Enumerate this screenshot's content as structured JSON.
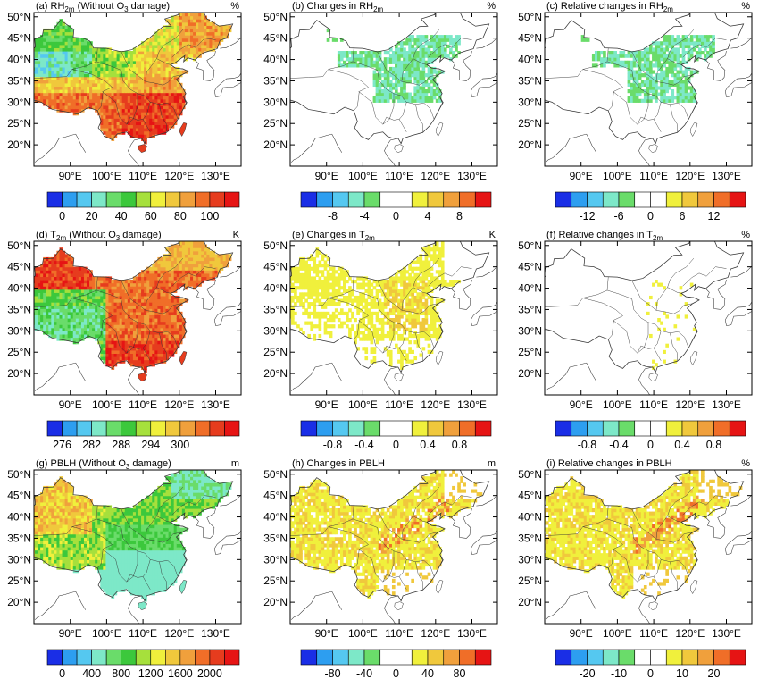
{
  "figure": {
    "lat_ticks": [
      "50°N",
      "45°N",
      "40°N",
      "35°N",
      "30°N",
      "25°N",
      "20°N"
    ],
    "lon_ticks": [
      "90°E",
      "100°E",
      "110°E",
      "120°E",
      "130°E"
    ]
  },
  "palette": {
    "rh": [
      "#1a2ee6",
      "#2d9ef0",
      "#55c8f0",
      "#7de8c8",
      "#6adc6a",
      "#3cc83c",
      "#a6e03c",
      "#f0f03c",
      "#f0c83c",
      "#f0a03c",
      "#f06e28",
      "#e63c1e",
      "#e61414"
    ],
    "div": [
      "#1a2ee6",
      "#2d9ef0",
      "#55c8f0",
      "#7de8c8",
      "#6adc6a",
      "#ffffff",
      "#ffffff",
      "#f0f03c",
      "#f0c83c",
      "#f0a03c",
      "#f06e28",
      "#e61414"
    ]
  },
  "chart_data": [
    {
      "id": "a",
      "type": "heatmap",
      "title_main": "(a) RH",
      "title_sub": "2m",
      "title_rest": " (Without O",
      "title_sub2": "3",
      "title_end": " damage)",
      "unit": "%",
      "colorbar": {
        "ticks": [
          "0",
          "20",
          "40",
          "60",
          "80",
          "100"
        ]
      },
      "field": "rh_base"
    },
    {
      "id": "b",
      "type": "heatmap",
      "title_main": "(b) Changes in RH",
      "title_sub": "2m",
      "title_rest": "",
      "title_sub2": "",
      "title_end": "",
      "unit": "%",
      "colorbar": {
        "ticks": [
          "-8",
          "-4",
          "0",
          "4",
          "8"
        ]
      },
      "field": "rh_change"
    },
    {
      "id": "c",
      "type": "heatmap",
      "title_main": "(c) Relative changes in RH",
      "title_sub": "2m",
      "title_rest": "",
      "title_sub2": "",
      "title_end": "",
      "unit": "%",
      "colorbar": {
        "ticks": [
          "-12",
          "-6",
          "0",
          "6",
          "12"
        ]
      },
      "field": "rh_change"
    },
    {
      "id": "d",
      "type": "heatmap",
      "title_main": "(d) T",
      "title_sub": "2m",
      "title_rest": " (Without O",
      "title_sub2": "3",
      "title_end": " damage)",
      "unit": "K",
      "colorbar": {
        "ticks": [
          "276",
          "282",
          "288",
          "294",
          "300"
        ]
      },
      "field": "t_base"
    },
    {
      "id": "e",
      "type": "heatmap",
      "title_main": "(e) Changes in T",
      "title_sub": "2m",
      "title_rest": "",
      "title_sub2": "",
      "title_end": "",
      "unit": "K",
      "colorbar": {
        "ticks": [
          "-0.8",
          "-0.4",
          "0",
          "0.4",
          "0.8"
        ]
      },
      "field": "t_change"
    },
    {
      "id": "f",
      "type": "heatmap",
      "title_main": "(f) Relative changes in T",
      "title_sub": "2m",
      "title_rest": "",
      "title_sub2": "",
      "title_end": "",
      "unit": "%",
      "colorbar": {
        "ticks": [
          "-0.8",
          "-0.4",
          "0",
          "0.4",
          "0.8"
        ]
      },
      "field": "t_rel"
    },
    {
      "id": "g",
      "type": "heatmap",
      "title_main": "(g) PBLH",
      "title_sub": "",
      "title_rest": " (Without O",
      "title_sub2": "3",
      "title_end": " damage)",
      "unit": "m",
      "colorbar": {
        "ticks": [
          "0",
          "400",
          "800",
          "1200",
          "1600",
          "2000"
        ]
      },
      "field": "pblh_base"
    },
    {
      "id": "h",
      "type": "heatmap",
      "title_main": "(h) Changes in PBLH",
      "title_sub": "",
      "title_rest": "",
      "title_sub2": "",
      "title_end": "",
      "unit": "m",
      "colorbar": {
        "ticks": [
          "-80",
          "-40",
          "0",
          "40",
          "80"
        ]
      },
      "field": "pblh_change"
    },
    {
      "id": "i",
      "type": "heatmap",
      "title_main": "(i) Relative changes in PBLH",
      "title_sub": "",
      "title_rest": "",
      "title_sub2": "",
      "title_end": "",
      "unit": "%",
      "colorbar": {
        "ticks": [
          "-20",
          "-10",
          "0",
          "10",
          "20"
        ]
      },
      "field": "pblh_change"
    }
  ]
}
